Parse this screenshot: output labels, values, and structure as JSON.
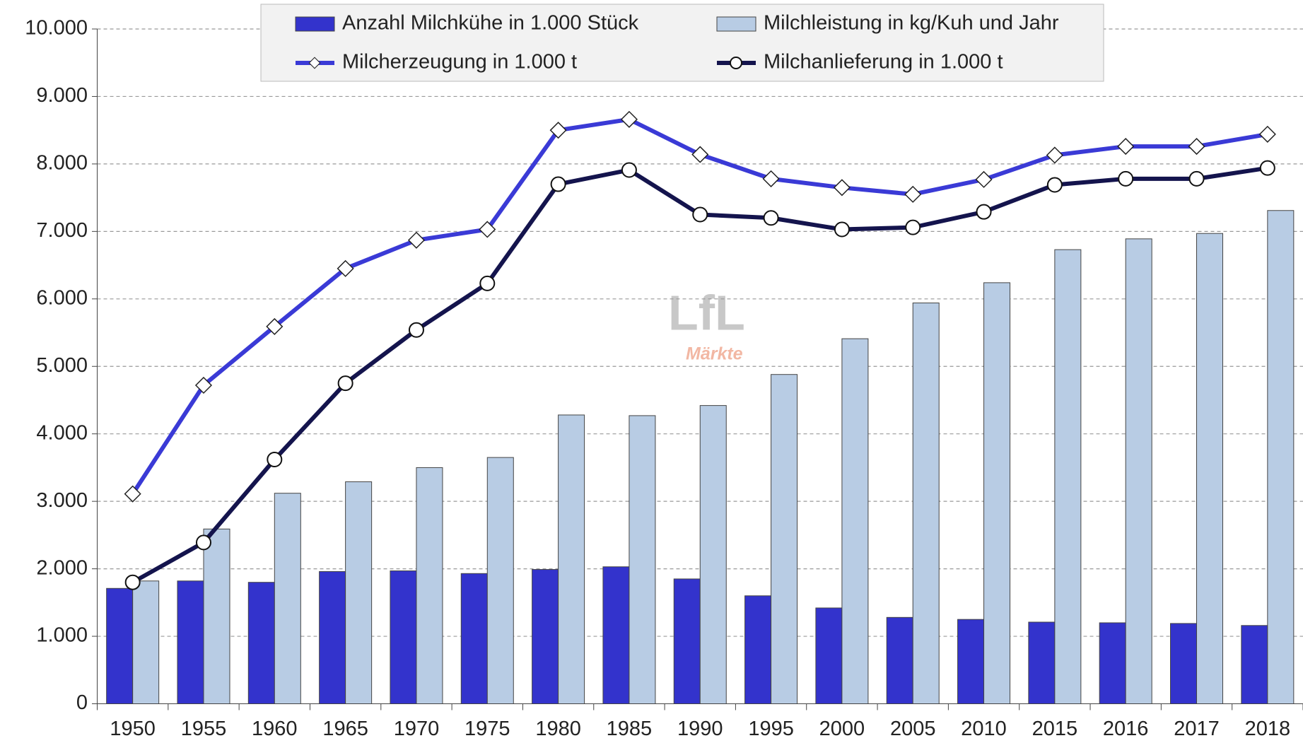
{
  "chart_data": {
    "type": "bar_line",
    "categories": [
      "1950",
      "1955",
      "1960",
      "1965",
      "1970",
      "1975",
      "1980",
      "1985",
      "1990",
      "1995",
      "2000",
      "2005",
      "2010",
      "2015",
      "2016",
      "2017",
      "2018"
    ],
    "series": [
      {
        "name": "Anzahl Milchkühe in 1.000 Stück",
        "type": "bar",
        "color": "#3333cc",
        "values": [
          1710,
          1820,
          1800,
          1960,
          1970,
          1930,
          1990,
          2030,
          1850,
          1600,
          1420,
          1280,
          1250,
          1210,
          1200,
          1190,
          1160
        ]
      },
      {
        "name": "Milchleistung in kg/Kuh und Jahr",
        "type": "bar",
        "color": "#b8cce4",
        "values": [
          1820,
          2590,
          3120,
          3290,
          3500,
          3650,
          4280,
          4270,
          4420,
          4880,
          5410,
          5940,
          6240,
          6730,
          6890,
          6970,
          7310
        ]
      },
      {
        "name": "Milcherzeugung in 1.000 t",
        "type": "line",
        "marker": "diamond",
        "color": "#3a3ad6",
        "values": [
          3110,
          4720,
          5590,
          6450,
          6870,
          7030,
          8500,
          8660,
          8140,
          7780,
          7650,
          7550,
          7770,
          8130,
          8260,
          8260,
          8440
        ]
      },
      {
        "name": "Milchanlieferung in 1.000 t",
        "type": "line",
        "marker": "circle",
        "color": "#14144d",
        "values": [
          1800,
          2390,
          3620,
          4750,
          5540,
          6230,
          7700,
          7910,
          7250,
          7200,
          7030,
          7060,
          7290,
          7690,
          7780,
          7780,
          7940
        ]
      }
    ],
    "ylim": [
      0,
      10000
    ],
    "yticks": [
      0,
      {
        "value": 1000,
        "label": "1.000"
      },
      {
        "value": 2000,
        "label": "2.000"
      },
      {
        "value": 3000,
        "label": "3.000"
      },
      {
        "value": 4000,
        "label": "4.000"
      },
      {
        "value": 5000,
        "label": "5.000"
      },
      {
        "value": 6000,
        "label": "6.000"
      },
      {
        "value": 7000,
        "label": "7.000"
      },
      {
        "value": 8000,
        "label": "8.000"
      },
      {
        "value": 9000,
        "label": "9.000"
      },
      {
        "value": 10000,
        "label": "10.000"
      }
    ],
    "grid": true,
    "watermark": {
      "logo": "LfL",
      "subtitle": "Märkte"
    }
  }
}
